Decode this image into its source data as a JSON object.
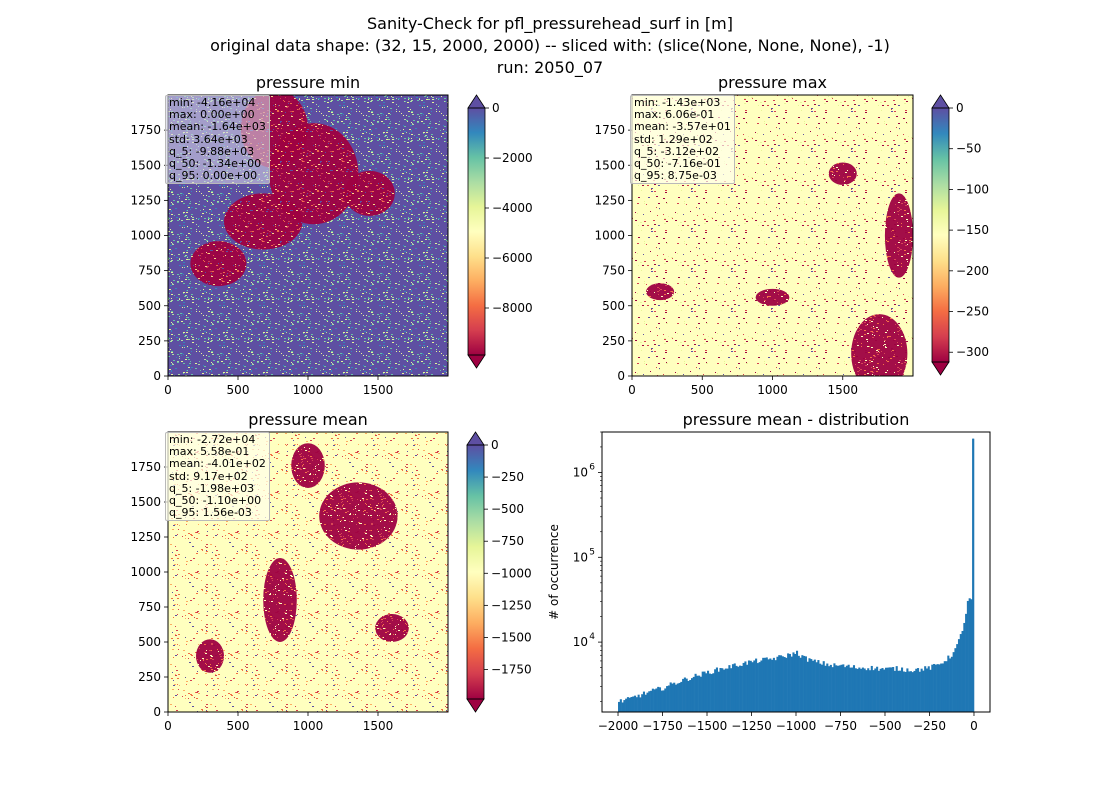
{
  "figure": {
    "title_lines": [
      "Sanity-Check for pfl_pressurehead_surf in [m]",
      "original data shape: (32, 15, 2000, 2000) -- sliced with: (slice(None, None, None), -1)",
      "run: 2050_07"
    ]
  },
  "colors": {
    "colormap": "Spectral",
    "cmap_stops": [
      "#9e0142",
      "#d53e4f",
      "#f46d43",
      "#fdae61",
      "#fee08b",
      "#ffffbf",
      "#e6f598",
      "#abdda4",
      "#66c2a5",
      "#3288bd",
      "#5e4fa2"
    ],
    "histogram_bar": "#1f77b4"
  },
  "panels": [
    {
      "title": "pressure min",
      "x_ticks": [
        "0",
        "500",
        "1000",
        "1500"
      ],
      "y_ticks": [
        "0",
        "250",
        "500",
        "750",
        "1000",
        "1250",
        "1500",
        "1750"
      ],
      "stats": [
        "min: -4.16e+04",
        "max: 0.00e+00",
        "mean: -1.64e+03",
        "std: 3.64e+03",
        "q_5: -9.88e+03",
        "q_50: -1.34e+00",
        "q_95: 0.00e+00"
      ],
      "colorbar": {
        "vmin": -9880,
        "vmax": 0,
        "ticks": [
          0,
          -2000,
          -4000,
          -6000,
          -8000
        ],
        "tick_labels": [
          "0",
          "−2000",
          "−4000",
          "−6000",
          "−8000"
        ],
        "extend": "both"
      },
      "background": "dark-purple"
    },
    {
      "title": "pressure max",
      "x_ticks": [
        "0",
        "500",
        "1000",
        "1500"
      ],
      "y_ticks": [
        "0",
        "250",
        "500",
        "750",
        "1000",
        "1250",
        "1500",
        "1750"
      ],
      "stats": [
        "min: -1.43e+03",
        "max: 6.06e-01",
        "mean: -3.57e+01",
        "std: 1.29e+02",
        "q_5: -3.12e+02",
        "q_50: -7.16e-01",
        "q_95: 8.75e-03"
      ],
      "colorbar": {
        "vmin": -312,
        "vmax": 0.00875,
        "ticks": [
          0,
          -50,
          -100,
          -150,
          -200,
          -250,
          -300
        ],
        "tick_labels": [
          "0",
          "−50",
          "−100",
          "−150",
          "−200",
          "−250",
          "−300"
        ],
        "extend": "both"
      },
      "background": "pale-yellow"
    },
    {
      "title": "pressure mean",
      "x_ticks": [
        "0",
        "500",
        "1000",
        "1500"
      ],
      "y_ticks": [
        "0",
        "250",
        "500",
        "750",
        "1000",
        "1250",
        "1500",
        "1750"
      ],
      "stats": [
        "min: -2.72e+04",
        "max: 5.58e-01",
        "mean: -4.01e+02",
        "std: 9.17e+02",
        "q_5: -1.98e+03",
        "q_50: -1.10e+00",
        "q_95: 1.56e-03"
      ],
      "colorbar": {
        "vmin": -1980,
        "vmax": 0.00156,
        "ticks": [
          0,
          -250,
          -500,
          -750,
          -1000,
          -1250,
          -1500,
          -1750
        ],
        "tick_labels": [
          "0",
          "−250",
          "−500",
          "−750",
          "−1000",
          "−1250",
          "−1500",
          "−1750"
        ],
        "extend": "both"
      },
      "background": "pale-yellow"
    }
  ],
  "chart_data": {
    "type": "bar",
    "title": "pressure mean - distribution",
    "xlabel": "",
    "ylabel": "# of occurrence",
    "yscale": "log",
    "xlim": [
      -2090,
      90
    ],
    "ylim": [
      1500,
      3000000
    ],
    "x_ticks": [
      -2000,
      -1750,
      -1500,
      -1250,
      -1000,
      -750,
      -500,
      -250,
      0
    ],
    "x_tick_labels": [
      "−2000",
      "−1750",
      "−1500",
      "−1250",
      "−1000",
      "−750",
      "−500",
      "−250",
      "0"
    ],
    "y_ticks": [
      10000,
      100000,
      1000000
    ],
    "y_tick_labels": [
      "10",
      "10",
      "10"
    ],
    "y_tick_exponents": [
      "4",
      "5",
      "6"
    ],
    "grid": false,
    "bin_width": 10,
    "x": [
      -2000,
      -1950,
      -1900,
      -1850,
      -1800,
      -1750,
      -1700,
      -1650,
      -1600,
      -1550,
      -1500,
      -1450,
      -1400,
      -1350,
      -1300,
      -1250,
      -1200,
      -1150,
      -1100,
      -1050,
      -1020,
      -1000,
      -980,
      -950,
      -900,
      -850,
      -800,
      -750,
      -700,
      -650,
      -600,
      -550,
      -500,
      -450,
      -400,
      -350,
      -300,
      -250,
      -200,
      -150,
      -120,
      -100,
      -80,
      -60,
      -50,
      -40,
      -30,
      -20,
      -10,
      0
    ],
    "values": [
      2000,
      2100,
      2300,
      2500,
      2700,
      2900,
      3200,
      3500,
      3800,
      4100,
      4400,
      4700,
      5000,
      5300,
      5600,
      5900,
      6100,
      6300,
      6600,
      7000,
      7300,
      7500,
      7000,
      6400,
      5900,
      5600,
      5300,
      5300,
      5100,
      5000,
      5000,
      4900,
      4800,
      4900,
      4800,
      4700,
      4800,
      5000,
      5500,
      6500,
      7500,
      9000,
      12000,
      17000,
      22000,
      29000,
      32000,
      2500000,
      1800000,
      3000
    ]
  }
}
